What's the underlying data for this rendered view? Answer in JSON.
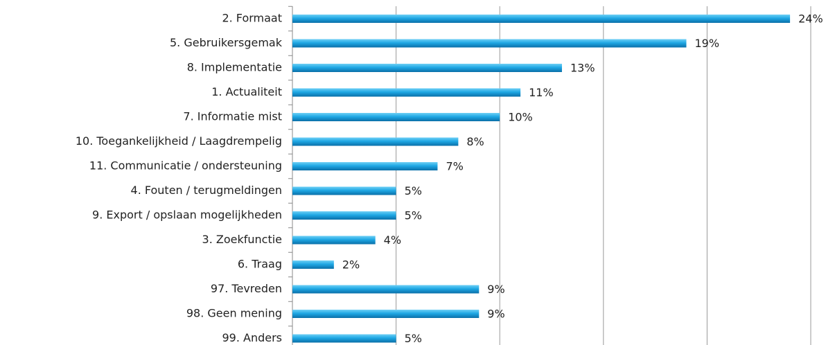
{
  "chart_data": {
    "type": "barh",
    "categories": [
      "2. Formaat",
      "5. Gebruikersgemak",
      "8. Implementatie",
      "1. Actualiteit",
      "7. Informatie mist",
      "10. Toegankelijkheid / Laagdrempelig",
      "11. Communicatie / ondersteuning",
      "4. Fouten / terugmeldingen",
      "9. Export / opslaan mogelijkheden",
      "3. Zoekfunctie",
      "6. Traag",
      "97. Tevreden",
      "98. Geen mening",
      "99. Anders"
    ],
    "values": [
      24,
      19,
      13,
      11,
      10,
      8,
      7,
      5,
      5,
      4,
      2,
      9,
      9,
      5
    ],
    "value_labels": [
      "24%",
      "19%",
      "13%",
      "11%",
      "10%",
      "8%",
      "7%",
      "5%",
      "5%",
      "4%",
      "2%",
      "9%",
      "9%",
      "5%"
    ],
    "color": "#1ea7e4",
    "xlim": [
      0,
      25
    ],
    "xticks": [
      0,
      5,
      10,
      15,
      20,
      25
    ],
    "grid": true
  }
}
